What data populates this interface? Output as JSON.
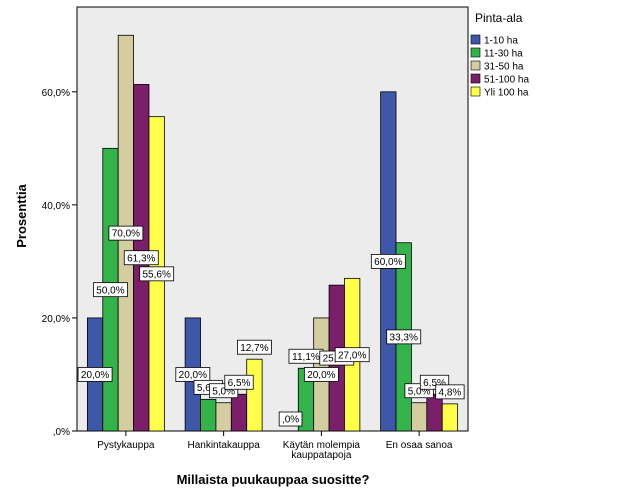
{
  "chart_data": {
    "type": "bar",
    "title": "",
    "xlabel": "Millaista puukauppaa suositte?",
    "ylabel": "Prosenttia",
    "ylim": [
      0,
      75
    ],
    "yticks": [
      0,
      20,
      40,
      60
    ],
    "ytick_labels": [
      ",0%",
      "20,0%",
      "40,0%",
      "60,0%"
    ],
    "categories": [
      "Pystykauppa",
      "Hankintakauppa",
      "Käytän molempia kauppatapoja",
      "En osaa sanoa"
    ],
    "category_lines": [
      [
        "Pystykauppa"
      ],
      [
        "Hankintakauppa"
      ],
      [
        "Käytän molempia",
        "kauppatapoja"
      ],
      [
        "En osaa sanoa"
      ]
    ],
    "legend_title": "Pinta-ala",
    "legend_position": "right",
    "grid": false,
    "series": [
      {
        "name": "1-10 ha",
        "color": "#3e57a8",
        "values": [
          20.0,
          20.0,
          0.0,
          60.0
        ],
        "labels": [
          "20,0%",
          "20,0%",
          ",0%",
          "60,0%"
        ]
      },
      {
        "name": "11-30 ha",
        "color": "#34b34a",
        "values": [
          50.0,
          5.6,
          11.1,
          33.3
        ],
        "labels": [
          "50,0%",
          "5,6%",
          "11,1%",
          "33,3%"
        ]
      },
      {
        "name": "31-50 ha",
        "color": "#d3cd9f",
        "values": [
          70.0,
          5.0,
          20.0,
          5.0
        ],
        "labels": [
          "70,0%",
          "5,0%",
          "20,0%",
          "5,0%"
        ]
      },
      {
        "name": "51-100 ha",
        "color": "#7b1f6b",
        "values": [
          61.3,
          6.5,
          25.8,
          6.5
        ],
        "labels": [
          "61,3%",
          "6,5%",
          "25,8%",
          "6,5%"
        ]
      },
      {
        "name": "Yli 100 ha",
        "color": "#ffff4a",
        "values": [
          55.6,
          12.7,
          27.0,
          4.8
        ],
        "labels": [
          "55,6%",
          "12,7%",
          "27,0%",
          "4,8%"
        ]
      }
    ]
  }
}
